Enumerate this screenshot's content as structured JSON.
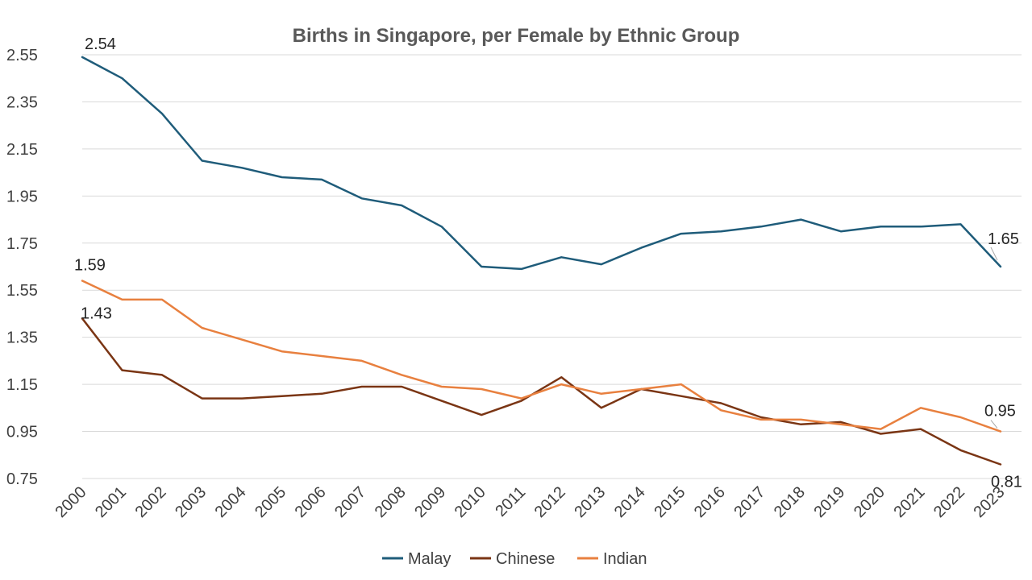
{
  "chart_data": {
    "type": "line",
    "title": "Births in Singapore, per Female by Ethnic Group",
    "xlabel": "",
    "ylabel": "",
    "ylim": [
      0.75,
      2.55
    ],
    "yticks": [
      "2.55",
      "2.35",
      "2.15",
      "1.95",
      "1.75",
      "1.55",
      "1.35",
      "1.15",
      "0.95",
      "0.75"
    ],
    "grid": true,
    "legend_position": "bottom",
    "categories": [
      "2000",
      "2001",
      "2002",
      "2003",
      "2004",
      "2005",
      "2006",
      "2007",
      "2008",
      "2009",
      "2010",
      "2011",
      "2012",
      "2013",
      "2014",
      "2015",
      "2016",
      "2017",
      "2018",
      "2019",
      "2020",
      "2021",
      "2022",
      "2023"
    ],
    "series": [
      {
        "name": "Malay",
        "color": "#1f5c7a",
        "values": [
          2.54,
          2.45,
          2.3,
          2.1,
          2.07,
          2.03,
          2.02,
          1.94,
          1.91,
          1.82,
          1.65,
          1.64,
          1.69,
          1.66,
          1.73,
          1.79,
          1.8,
          1.82,
          1.85,
          1.8,
          1.82,
          1.82,
          1.83,
          1.65
        ]
      },
      {
        "name": "Chinese",
        "color": "#7a3514",
        "values": [
          1.43,
          1.21,
          1.19,
          1.09,
          1.09,
          1.1,
          1.11,
          1.14,
          1.14,
          1.08,
          1.02,
          1.08,
          1.18,
          1.05,
          1.13,
          1.1,
          1.07,
          1.01,
          0.98,
          0.99,
          0.94,
          0.96,
          0.87,
          0.81
        ]
      },
      {
        "name": "Indian",
        "color": "#e8803f",
        "values": [
          1.59,
          1.51,
          1.51,
          1.39,
          1.34,
          1.29,
          1.27,
          1.25,
          1.19,
          1.14,
          1.13,
          1.09,
          1.15,
          1.11,
          1.13,
          1.15,
          1.04,
          1.0,
          1.0,
          0.98,
          0.96,
          1.05,
          1.01,
          0.95
        ]
      }
    ],
    "data_labels": [
      {
        "series": 0,
        "index": 0,
        "text": "2.54"
      },
      {
        "series": 0,
        "index": 23,
        "text": "1.65"
      },
      {
        "series": 2,
        "index": 0,
        "text": "1.59"
      },
      {
        "series": 2,
        "index": 23,
        "text": "0.95"
      },
      {
        "series": 1,
        "index": 0,
        "text": "1.43"
      },
      {
        "series": 1,
        "index": 23,
        "text": "0.81"
      }
    ]
  }
}
